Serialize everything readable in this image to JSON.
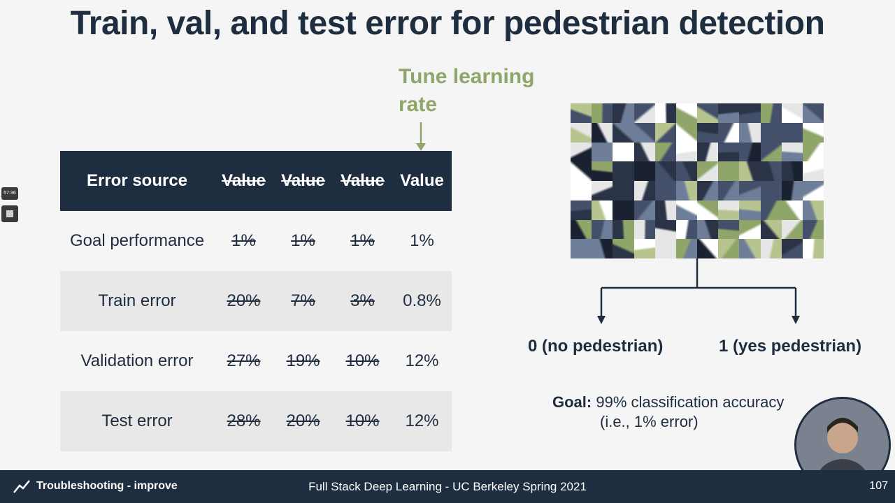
{
  "slide": {
    "title": "Train, val, and test error for pedestrian detection",
    "annotation": {
      "line1": "Tune learning",
      "line2": "rate"
    }
  },
  "table": {
    "headers": [
      "Error source",
      "Value",
      "Value",
      "Value",
      "Value"
    ],
    "rows": [
      {
        "label": "Goal performance",
        "values": [
          "1%",
          "1%",
          "1%",
          "1%"
        ]
      },
      {
        "label": "Train error",
        "values": [
          "20%",
          "7%",
          "3%",
          "0.8%"
        ]
      },
      {
        "label": "Validation error",
        "values": [
          "27%",
          "19%",
          "10%",
          "12%"
        ]
      },
      {
        "label": "Test error",
        "values": [
          "28%",
          "20%",
          "10%",
          "12%"
        ]
      }
    ]
  },
  "diagram": {
    "output0": "0 (no pedestrian)",
    "output1": "1 (yes pedestrian)"
  },
  "goal": {
    "label": "Goal:",
    "text": "99% classification accuracy",
    "text2": "(i.e., 1% error)"
  },
  "player": {
    "time": "57:36"
  },
  "footer": {
    "section": "Troubleshooting - improve",
    "course": "Full Stack Deep Learning - UC Berkeley Spring 2021",
    "page": "107"
  },
  "colors": {
    "navy": "#1f2d40",
    "accent_green": "#8fa56a"
  },
  "icons": {
    "footer_left": "trend-line-icon",
    "sidebar": "stop-icon"
  }
}
